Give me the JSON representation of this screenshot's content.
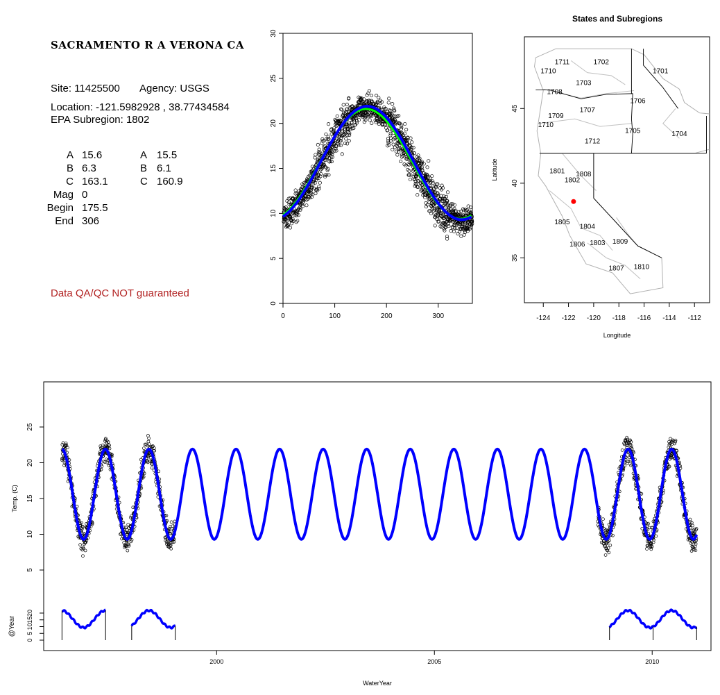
{
  "info": {
    "site_title": "SACRAMENTO R A VERONA CA",
    "site_line": "Site: 11425500",
    "agency_line": "Agency: USGS",
    "location_line": "Location: -121.5982928 , 38.77434584",
    "subregion_line": "EPA Subregion: 1802",
    "params": [
      {
        "label": "A",
        "value1": "15.6",
        "label2": "A",
        "value2": "15.5"
      },
      {
        "label": "B",
        "value1": "6.3",
        "label2": "B",
        "value2": "6.1"
      },
      {
        "label": "C",
        "value1": "163.1",
        "label2": "C",
        "value2": "160.9"
      },
      {
        "label": "Mag",
        "value1": "0",
        "label2": "",
        "value2": ""
      },
      {
        "label": "Begin",
        "value1": "175.5",
        "label2": "",
        "value2": ""
      },
      {
        "label": "End",
        "value1": "306",
        "label2": "",
        "value2": ""
      }
    ],
    "qa_note": "Data QA/QC NOT guaranteed"
  },
  "colors": {
    "fit_blue": "#0000ff",
    "fit_green": "#00ff00",
    "points": "#000000",
    "site_marker": "#ff0000",
    "qa_text": "#b22222",
    "map_lines": "#bbbbbb"
  },
  "chart_data": [
    {
      "type": "scatter",
      "title": "",
      "xlabel": "",
      "ylabel": "",
      "xlim": [
        0,
        366
      ],
      "ylim": [
        0,
        30
      ],
      "xticks": [
        0,
        100,
        200,
        300
      ],
      "yticks": [
        0,
        5,
        10,
        15,
        20,
        25,
        30
      ],
      "series": [
        {
          "kind": "points",
          "color": "#000000",
          "description": "daily water temperature by day of water year"
        },
        {
          "kind": "line",
          "color": "#00ff00",
          "A": 15.5,
          "B": 6.1,
          "C": 160.9
        },
        {
          "kind": "line",
          "color": "#0000ff",
          "A": 15.6,
          "B": 6.3,
          "C": 163.1
        }
      ]
    },
    {
      "type": "map",
      "title": "States and Subregions",
      "xlabel": "Longitude",
      "ylabel": "Latitude",
      "xlim": [
        -125.5,
        -110.8
      ],
      "ylim": [
        32,
        49.8
      ],
      "xticks": [
        -124,
        -122,
        -120,
        -118,
        -116,
        -114,
        -112
      ],
      "yticks": [
        35,
        40,
        45
      ],
      "region_labels": [
        {
          "label": "1711",
          "lon": -122.5,
          "lat": 48.1
        },
        {
          "label": "1710",
          "lon": -123.6,
          "lat": 47.5
        },
        {
          "label": "1702",
          "lon": -119.4,
          "lat": 48.1
        },
        {
          "label": "1701",
          "lon": -114.7,
          "lat": 47.5
        },
        {
          "label": "1703",
          "lon": -120.8,
          "lat": 46.7
        },
        {
          "label": "1708",
          "lon": -123.1,
          "lat": 46.1
        },
        {
          "label": "1706",
          "lon": -116.5,
          "lat": 45.5
        },
        {
          "label": "1707",
          "lon": -120.5,
          "lat": 44.9
        },
        {
          "label": "1709",
          "lon": -123.0,
          "lat": 44.5
        },
        {
          "label": "1710",
          "lon": -123.8,
          "lat": 43.9
        },
        {
          "label": "1705",
          "lon": -116.9,
          "lat": 43.5
        },
        {
          "label": "1704",
          "lon": -113.2,
          "lat": 43.3
        },
        {
          "label": "1712",
          "lon": -120.1,
          "lat": 42.8
        },
        {
          "label": "1801",
          "lon": -122.9,
          "lat": 40.8
        },
        {
          "label": "1808",
          "lon": -120.8,
          "lat": 40.6
        },
        {
          "label": "1802",
          "lon": -121.7,
          "lat": 40.2
        },
        {
          "label": "1805",
          "lon": -122.5,
          "lat": 37.4
        },
        {
          "label": "1804",
          "lon": -120.5,
          "lat": 37.1
        },
        {
          "label": "1806",
          "lon": -121.3,
          "lat": 35.9
        },
        {
          "label": "1803",
          "lon": -119.7,
          "lat": 36.0
        },
        {
          "label": "1809",
          "lon": -117.9,
          "lat": 36.1
        },
        {
          "label": "1807",
          "lon": -118.2,
          "lat": 34.3
        },
        {
          "label": "1810",
          "lon": -116.2,
          "lat": 34.4
        }
      ],
      "site": {
        "lon": -121.5982928,
        "lat": 38.77434584,
        "color": "#ff0000"
      }
    },
    {
      "type": "line",
      "title": "",
      "xlabel": "WaterYear",
      "ylabel": "Temp. (C)",
      "ylabel2": "@Year",
      "xlim": [
        1996.03,
        2011.35
      ],
      "xticks": [
        2000,
        2005,
        2010
      ],
      "yticks_temp": [
        5,
        10,
        15,
        20,
        25
      ],
      "yticks_year": [
        0,
        5,
        10,
        15,
        20
      ],
      "fit": {
        "A": 15.6,
        "B": 6.3,
        "C": 163.1,
        "start": 1996.45,
        "end": 2011.02
      },
      "observed_periods": [
        [
          1996.45,
          1999.05
        ],
        [
          2008.75,
          2011.02
        ]
      ],
      "annual_markers": [
        [
          1996.45,
          1997.45
        ],
        [
          1998.05,
          1999.05
        ],
        [
          2009.02,
          2010.02
        ],
        [
          2010.02,
          2011.02
        ]
      ]
    }
  ]
}
